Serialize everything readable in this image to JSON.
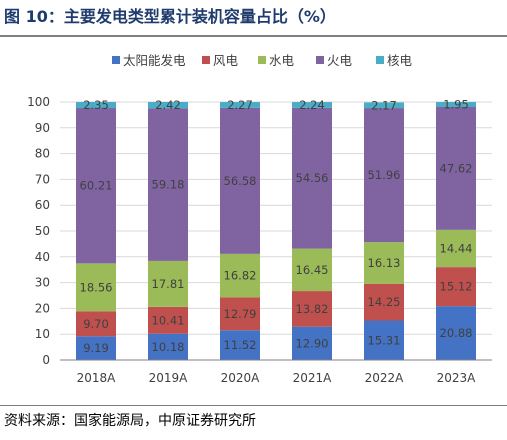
{
  "figure_title": "图 10：主要发电类型累计装机容量占比（%）",
  "source_note": "资料来源：国家能源局，中原证券研究所",
  "chart_data": {
    "type": "bar",
    "stacked": true,
    "categories": [
      "2018A",
      "2019A",
      "2020A",
      "2021A",
      "2022A",
      "2023A"
    ],
    "series": [
      {
        "name": "太阳能发电",
        "color": "#4472C4",
        "values": [
          9.19,
          10.18,
          11.52,
          12.9,
          15.31,
          20.88
        ]
      },
      {
        "name": "风电",
        "color": "#C0504D",
        "values": [
          9.7,
          10.41,
          12.79,
          13.82,
          14.25,
          15.12
        ]
      },
      {
        "name": "水电",
        "color": "#9BBB59",
        "values": [
          18.56,
          17.81,
          16.82,
          16.45,
          16.13,
          14.44
        ]
      },
      {
        "name": "火电",
        "color": "#8064A2",
        "values": [
          60.21,
          59.18,
          56.58,
          54.56,
          51.96,
          47.62
        ]
      },
      {
        "name": "核电",
        "color": "#4BACC6",
        "values": [
          2.35,
          2.42,
          2.27,
          2.24,
          2.17,
          1.95
        ]
      }
    ],
    "ylim": [
      0,
      100
    ],
    "yticks": [
      0,
      10,
      20,
      30,
      40,
      50,
      60,
      70,
      80,
      90,
      100
    ],
    "grid": true,
    "legend_position": "top",
    "label_color": "#404040",
    "axis_color": "#808080",
    "grid_color": "#D9D9D9"
  }
}
